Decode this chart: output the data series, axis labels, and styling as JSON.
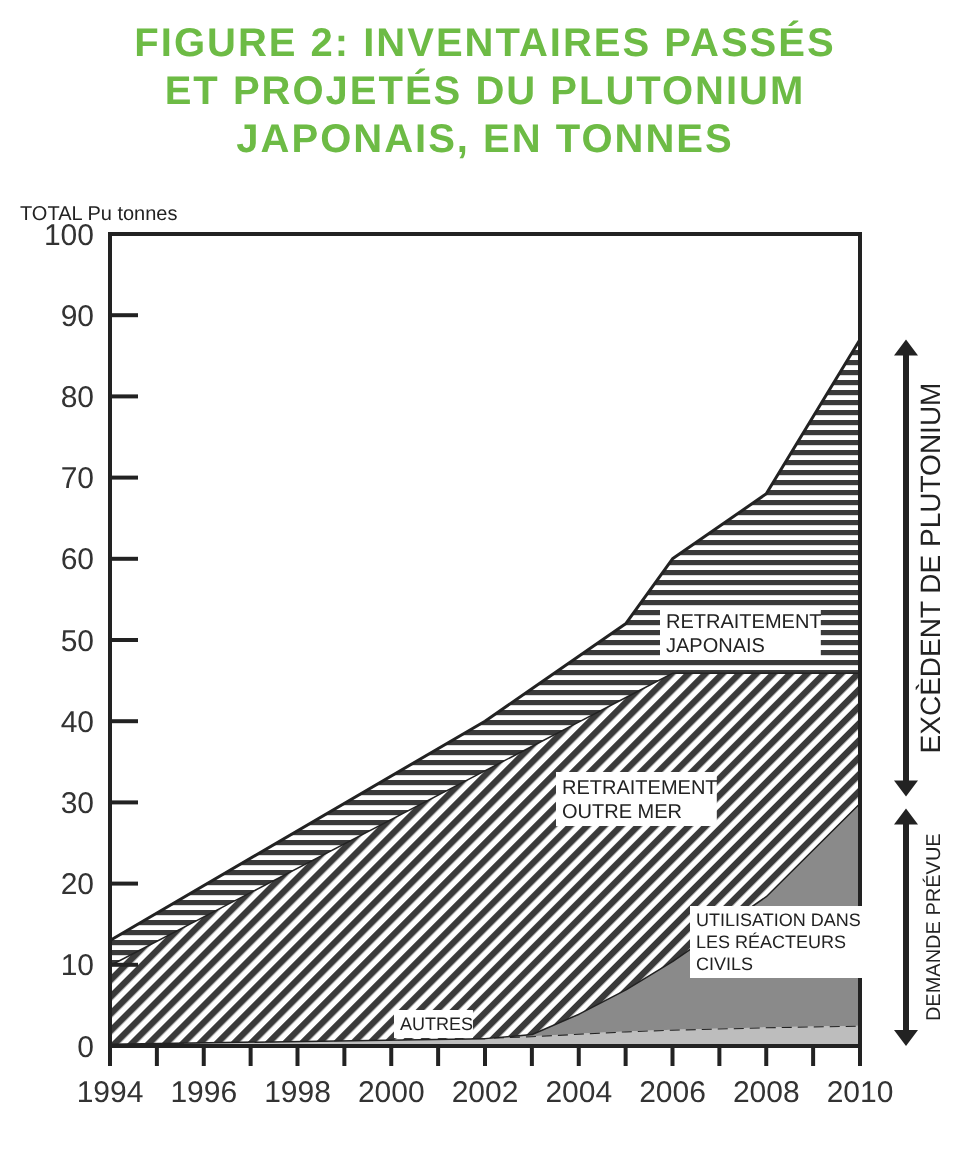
{
  "chart_data": {
    "type": "area",
    "stacked": true,
    "title": "FIGURE 2: INVENTAIRES PASSÉS ET PROJETÉS DU PLUTONIUM JAPONAIS, EN TONNES",
    "ylabel": "TOTAL Pu tonnes",
    "x": [
      1994,
      2002,
      2003,
      2004,
      2005,
      2006,
      2008,
      2010
    ],
    "series": [
      {
        "name": "AUTRES",
        "color": "#bdbdbd",
        "values": [
          0.3,
          1,
          1.2,
          1.5,
          1.8,
          2,
          2.3,
          2.5
        ]
      },
      {
        "name": "UTILISATION DANS LES RÉACTEURS CIVILS",
        "color": "#8a8a8a",
        "values": [
          0,
          0,
          0.3,
          2.5,
          5.2,
          8.5,
          16.2,
          27.5
        ]
      },
      {
        "name": "RETRAITEMENT OUTRE MER",
        "color": "#3a3a3a",
        "values": [
          9.7,
          33,
          35.5,
          36,
          36,
          35.5,
          27.5,
          16
        ]
      },
      {
        "name": "RETRAITEMENT JAPONAIS",
        "color": "#3a3a3a",
        "values": [
          3,
          6,
          7,
          8,
          9,
          14,
          22,
          41
        ]
      }
    ],
    "xlim": [
      1994,
      2010
    ],
    "ylim": [
      0,
      100
    ],
    "xticks": [
      1994,
      {
        "value": 1995,
        "label": null
      },
      1996,
      {
        "value": 1997,
        "label": null
      },
      1998,
      {
        "value": 1999,
        "label": null
      },
      2000,
      {
        "value": 2001,
        "label": null
      },
      2002,
      {
        "value": 2003,
        "label": null
      },
      2004,
      {
        "value": 2005,
        "label": null
      },
      2006,
      {
        "value": 2007,
        "label": null
      },
      2008,
      {
        "value": 2009,
        "label": null
      },
      2010
    ],
    "yticks": [
      0,
      10,
      20,
      30,
      40,
      50,
      60,
      70,
      80,
      90,
      100
    ],
    "annotations": [
      "EXCÈDENT DE PLUTONIUM",
      "DEMANDE PRÉVUE"
    ],
    "legend": false,
    "grid": false
  }
}
